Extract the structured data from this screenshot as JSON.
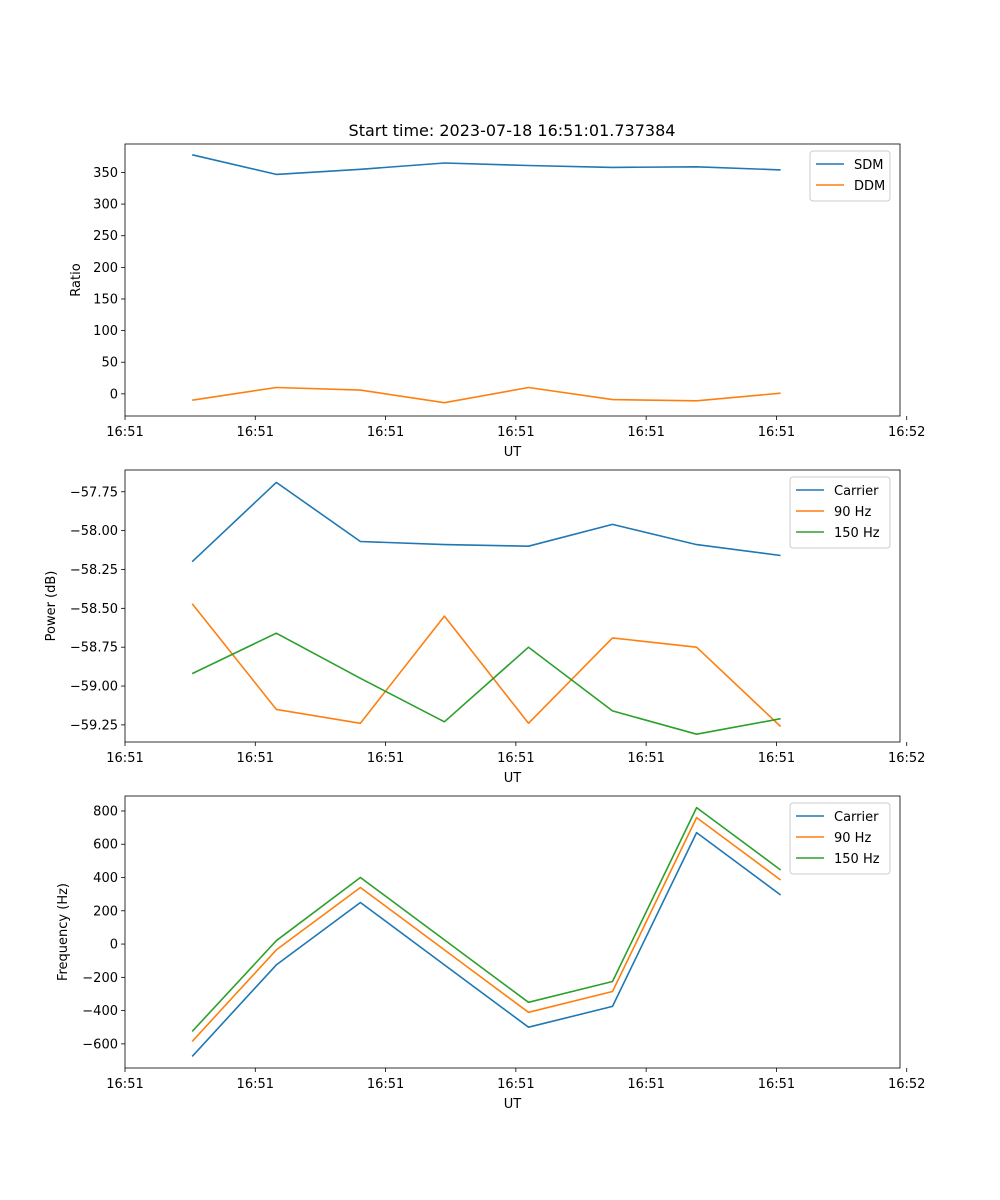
{
  "title": "Start time: 2023-07-18 16:51:01.737384",
  "chart_data": [
    {
      "type": "line",
      "xlabel": "UT",
      "ylabel": "Ratio",
      "x": [
        0.5,
        1,
        1.5,
        2,
        2.5,
        3,
        3.5,
        4
      ],
      "xlim": [
        0.1,
        4.71
      ],
      "xticks": [
        0.1,
        0.875,
        1.65,
        2.425,
        3.2,
        3.975,
        4.75
      ],
      "xtick_labels": [
        "16:51",
        "16:51",
        "16:51",
        "16:51",
        "16:51",
        "16:51",
        "16:52"
      ],
      "ylim": [
        -35,
        395
      ],
      "yticks": [
        0,
        50,
        100,
        150,
        200,
        250,
        300,
        350
      ],
      "ytick_labels": [
        "0",
        "50",
        "100",
        "150",
        "200",
        "250",
        "300",
        "350"
      ],
      "legend": "top-right",
      "series": [
        {
          "name": "SDM",
          "color": "#1f77b4",
          "values": [
            378,
            347,
            355,
            365,
            361,
            358,
            359,
            354
          ]
        },
        {
          "name": "DDM",
          "color": "#ff7f0e",
          "values": [
            -10,
            10,
            6,
            -14,
            10,
            -9,
            -11,
            1
          ]
        }
      ]
    },
    {
      "type": "line",
      "xlabel": "UT",
      "ylabel": "Power (dB)",
      "x": [
        0.5,
        1,
        1.5,
        2,
        2.5,
        3,
        3.5,
        4
      ],
      "xlim": [
        0.1,
        4.71
      ],
      "xticks": [
        0.1,
        0.875,
        1.65,
        2.425,
        3.2,
        3.975,
        4.75
      ],
      "xtick_labels": [
        "16:51",
        "16:51",
        "16:51",
        "16:51",
        "16:51",
        "16:51",
        "16:52"
      ],
      "ylim": [
        -59.36,
        -57.61
      ],
      "yticks": [
        -59.25,
        -59.0,
        -58.75,
        -58.5,
        -58.25,
        -58.0,
        -57.75
      ],
      "ytick_labels": [
        "−59.25",
        "−59.00",
        "−58.75",
        "−58.50",
        "−58.25",
        "−58.00",
        "−57.75"
      ],
      "legend": "top-right",
      "series": [
        {
          "name": "Carrier",
          "color": "#1f77b4",
          "values": [
            -58.2,
            -57.69,
            -58.07,
            -58.09,
            -58.1,
            -57.96,
            -58.09,
            -58.16
          ]
        },
        {
          "name": "90 Hz",
          "color": "#ff7f0e",
          "values": [
            -58.47,
            -59.15,
            -59.24,
            -58.55,
            -59.24,
            -58.69,
            -58.75,
            -59.26
          ]
        },
        {
          "name": "150 Hz",
          "color": "#2ca02c",
          "values": [
            -58.92,
            -58.66,
            -58.95,
            -59.23,
            -58.75,
            -59.16,
            -59.31,
            -59.21
          ]
        }
      ]
    },
    {
      "type": "line",
      "xlabel": "UT",
      "ylabel": "Frequency (Hz)",
      "x": [
        0.5,
        1,
        1.5,
        2,
        2.5,
        3,
        3.5,
        4
      ],
      "xlim": [
        0.1,
        4.71
      ],
      "xticks": [
        0.1,
        0.875,
        1.65,
        2.425,
        3.2,
        3.975,
        4.75
      ],
      "xtick_labels": [
        "16:51",
        "16:51",
        "16:51",
        "16:51",
        "16:51",
        "16:51",
        "16:52"
      ],
      "ylim": [
        -745,
        890
      ],
      "yticks": [
        -600,
        -400,
        -200,
        0,
        200,
        400,
        600,
        800
      ],
      "ytick_labels": [
        "−600",
        "−400",
        "−200",
        "0",
        "200",
        "400",
        "600",
        "800"
      ],
      "legend": "top-right",
      "series": [
        {
          "name": "Carrier",
          "color": "#1f77b4",
          "values": [
            -675,
            -125,
            250,
            -125,
            -500,
            -375,
            670,
            295
          ]
        },
        {
          "name": "90 Hz",
          "color": "#ff7f0e",
          "values": [
            -585,
            -35,
            340,
            -35,
            -410,
            -285,
            760,
            385
          ]
        },
        {
          "name": "150 Hz",
          "color": "#2ca02c",
          "values": [
            -525,
            20,
            400,
            25,
            -350,
            -225,
            820,
            445
          ]
        }
      ]
    }
  ]
}
